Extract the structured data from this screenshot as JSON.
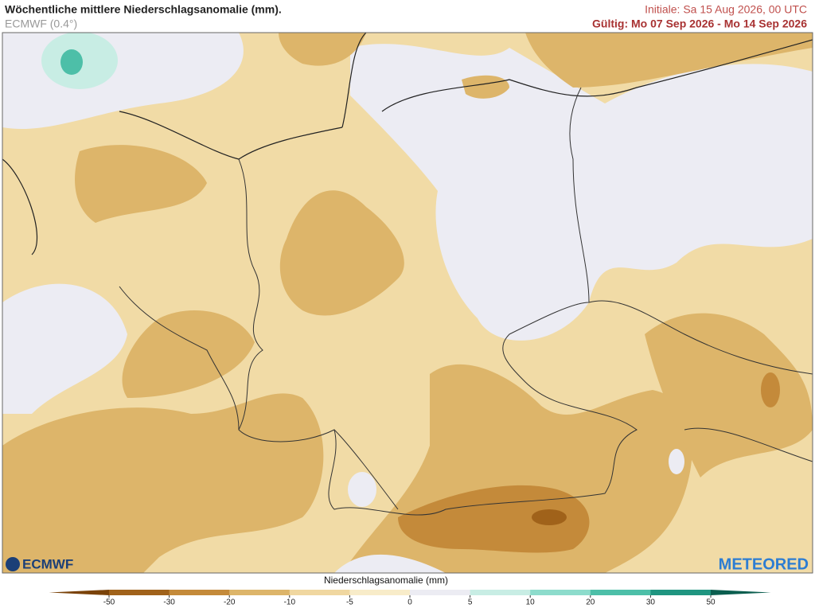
{
  "header": {
    "title": "Wöchentliche mittlere Niederschlagsanomalie (mm).",
    "model": "ECMWF (0.4°)",
    "init": "Initiale:  Sa 15 Aug 2026, 00 UTC",
    "valid": "Gültig: Mo 07 Sep 2026 - Mo 14 Sep 2026"
  },
  "logos": {
    "left": "ECMWF",
    "right": "METEORED"
  },
  "legend": {
    "title": "Niederschlagsanomalie (mm)",
    "ticks": [
      -50,
      -30,
      -20,
      -10,
      -5,
      0,
      5,
      10,
      20,
      30,
      50
    ],
    "colors": [
      "#7a4208",
      "#a0621a",
      "#c48a3a",
      "#ddb56a",
      "#f0d7a0",
      "#f8ecc9",
      "#ececf3",
      "#c8ede4",
      "#8ddccc",
      "#4dbfa8",
      "#1f9580",
      "#0b5e4f"
    ]
  }
}
